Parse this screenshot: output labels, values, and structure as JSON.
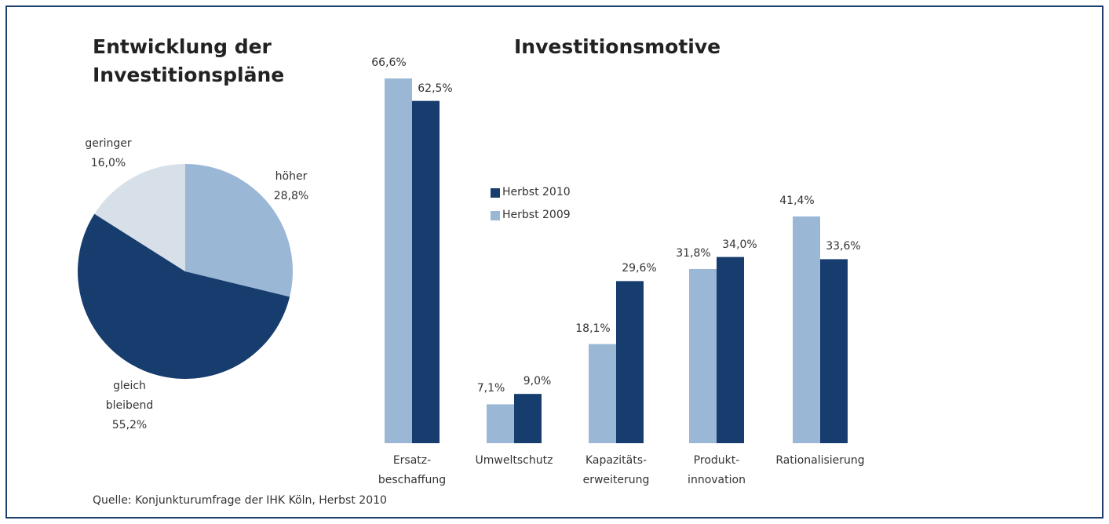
{
  "chart_data": [
    {
      "type": "pie",
      "title": "Entwicklung der Investitionspläne",
      "categories": [
        "höher",
        "gleich bleibend",
        "geringer"
      ],
      "values": [
        28.8,
        55.2,
        16.0
      ],
      "value_labels": [
        "28,8%",
        "55,2%",
        "16,0%"
      ],
      "colors": [
        "#9ab7d6",
        "#173d6e",
        "#d7e0e9"
      ]
    },
    {
      "type": "bar",
      "title": "Investitionsmotive",
      "categories": [
        "Ersatz-beschaffung",
        "Umweltschutz",
        "Kapazitäts-erweiterung",
        "Produkt-innovation",
        "Rationalisierung"
      ],
      "series": [
        {
          "name": "Herbst 2009",
          "color": "#9ab7d6",
          "values": [
            66.6,
            7.1,
            18.1,
            31.8,
            41.4
          ],
          "value_labels": [
            "66,6%",
            "7,1%",
            "18,1%",
            "31,8%",
            "41,4%"
          ]
        },
        {
          "name": "Herbst 2010",
          "color": "#173d6e",
          "values": [
            62.5,
            9.0,
            29.6,
            34.0,
            33.6
          ],
          "value_labels": [
            "62,5%",
            "9,0%",
            "29,6%",
            "34,0%",
            "33,6%"
          ]
        }
      ],
      "ylim": [
        0,
        70
      ]
    }
  ],
  "source": "Quelle: Konjunkturumfrage der IHK Köln, Herbst 2010"
}
